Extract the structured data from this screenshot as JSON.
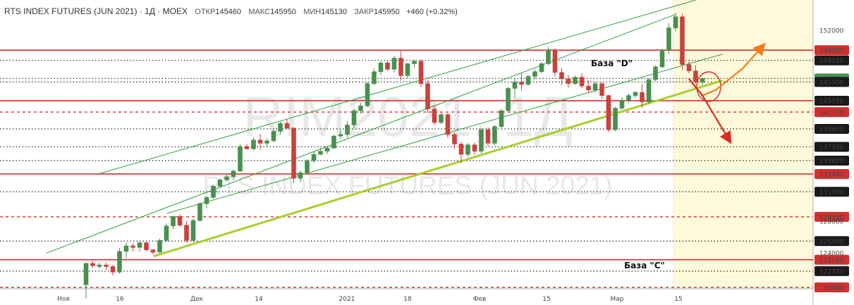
{
  "header": {
    "title": "RTS INDEX FUTURES (JUN 2021) · 1Д · MOEX",
    "open_label": "ОТКР",
    "open": "145460",
    "high_label": "МАКС",
    "high": "145950",
    "low_label": "МИН",
    "low": "145130",
    "close_label": "ЗАКР",
    "close": "145950",
    "change": "+460 (+0.32%)"
  },
  "watermark": {
    "line1": "RIM2021, 1Д",
    "line2": "RTS INDEX FUTURES (JUN 2021)"
  },
  "colors": {
    "up": "#4a8f4f",
    "down": "#c8433c",
    "hline_red": "#d32f2f",
    "channel": "#2e9e3a",
    "support": "#a8cf2c",
    "arrow_up": "#f07d1a",
    "arrow_down": "#d92a1e",
    "highlight": "#fff9db"
  },
  "annotations": {
    "base_d": "База \"D\"",
    "base_c": "База \"С\""
  },
  "chart_data": {
    "type": "candlestick",
    "title": "RTS INDEX FUTURES (JUN 2021) · 1Д · MOEX",
    "ylim": [
      118300,
      155800
    ],
    "x_tick_labels": [
      "Ноя",
      "16",
      "Дек",
      "14",
      "2021",
      "18",
      "Фев",
      "15",
      "Мар",
      "15"
    ],
    "y_axis_labels": [
      {
        "value": 152000,
        "style": "plain"
      },
      {
        "value": 149500,
        "style": "red"
      },
      {
        "value": 148220,
        "style": "dark"
      },
      {
        "value": 145950,
        "style": "green"
      },
      {
        "value": 145500,
        "style": "dark"
      },
      {
        "value": 143150,
        "style": "dark"
      },
      {
        "value": 141720,
        "style": "red"
      },
      {
        "value": 139600,
        "style": "dark"
      },
      {
        "value": 137350,
        "style": "dark"
      },
      {
        "value": 135620,
        "style": "dark"
      },
      {
        "value": 133940,
        "style": "red"
      },
      {
        "value": 131700,
        "style": "dark"
      },
      {
        "value": 128550,
        "style": "red"
      },
      {
        "value": 128000,
        "style": "faint"
      },
      {
        "value": 125500,
        "style": "dark"
      },
      {
        "value": 124000,
        "style": "faint"
      },
      {
        "value": 123160,
        "style": "red"
      },
      {
        "value": 121730,
        "style": "dark"
      },
      {
        "value": 119680,
        "style": "red"
      }
    ],
    "horizontal_levels": [
      {
        "value": 149500,
        "style": "solid-red"
      },
      {
        "value": 148220,
        "style": "dotted"
      },
      {
        "value": 145950,
        "style": "dotted"
      },
      {
        "value": 145500,
        "style": "dotted"
      },
      {
        "value": 143150,
        "style": "solid-red"
      },
      {
        "value": 141720,
        "style": "dashed-red"
      },
      {
        "value": 139600,
        "style": "dotted"
      },
      {
        "value": 137350,
        "style": "dotted"
      },
      {
        "value": 135620,
        "style": "dotted"
      },
      {
        "value": 133940,
        "style": "solid-red"
      },
      {
        "value": 131700,
        "style": "dotted"
      },
      {
        "value": 128550,
        "style": "dashed-red"
      },
      {
        "value": 125500,
        "style": "dotted"
      },
      {
        "value": 123160,
        "style": "solid-red"
      },
      {
        "value": 121730,
        "style": "dotted"
      },
      {
        "value": 119680,
        "style": "dashed-red"
      }
    ],
    "trend_lines": [
      {
        "kind": "channel",
        "from": [
          0,
          124000
        ],
        "to": [
          88,
          154000
        ]
      },
      {
        "kind": "channel",
        "from": [
          8,
          134000
        ],
        "to": [
          91,
          155800
        ]
      },
      {
        "kind": "channel",
        "from": [
          18,
          129000
        ],
        "to": [
          95,
          149000
        ]
      },
      {
        "kind": "support",
        "from": [
          16,
          123600
        ],
        "to": [
          95,
          145700
        ]
      }
    ],
    "forecast_arrows": [
      {
        "kind": "up",
        "points": [
          [
            90,
            145900
          ],
          [
            92,
            143800
          ],
          [
            94,
            144500
          ],
          [
            98,
            147200
          ],
          [
            101,
            150000
          ]
        ]
      },
      {
        "kind": "down",
        "points": [
          [
            90,
            145900
          ],
          [
            92,
            143800
          ],
          [
            94,
            141000
          ],
          [
            96,
            138200
          ]
        ]
      }
    ],
    "candles": [
      [
        120000,
        122800,
        118300,
        122700
      ],
      [
        122700,
        123000,
        122100,
        122400
      ],
      [
        122300,
        122800,
        122000,
        122500
      ],
      [
        122500,
        122800,
        121900,
        122300
      ],
      [
        122300,
        122500,
        121200,
        121600
      ],
      [
        121600,
        124600,
        121400,
        124200
      ],
      [
        124200,
        125300,
        123300,
        124900
      ],
      [
        124900,
        125200,
        124200,
        124700
      ],
      [
        124700,
        125400,
        124200,
        125300
      ],
      [
        125300,
        125400,
        124200,
        124400
      ],
      [
        124400,
        124500,
        123800,
        124100
      ],
      [
        124100,
        125800,
        124000,
        125600
      ],
      [
        125600,
        127700,
        125400,
        127400
      ],
      [
        127400,
        128700,
        127000,
        128600
      ],
      [
        128600,
        128900,
        127300,
        127500
      ],
      [
        127500,
        128000,
        125300,
        125600
      ],
      [
        125600,
        128300,
        125400,
        128100
      ],
      [
        128100,
        130400,
        127900,
        130200
      ],
      [
        130200,
        131200,
        129600,
        131000
      ],
      [
        131000,
        132600,
        130800,
        132400
      ],
      [
        132400,
        133400,
        132100,
        133200
      ],
      [
        133200,
        134000,
        133000,
        133600
      ],
      [
        133600,
        134500,
        133200,
        134300
      ],
      [
        134300,
        137700,
        134200,
        137400
      ],
      [
        137400,
        137700,
        137000,
        137100
      ],
      [
        137100,
        138500,
        136900,
        138200
      ],
      [
        138200,
        139000,
        137000,
        137800
      ],
      [
        137800,
        138400,
        137400,
        138100
      ],
      [
        138100,
        139600,
        137900,
        139300
      ],
      [
        139300,
        140500,
        138900,
        140300
      ],
      [
        140300,
        140800,
        139600,
        139700
      ],
      [
        139700,
        139800,
        132800,
        133400
      ],
      [
        133400,
        134400,
        132900,
        134100
      ],
      [
        134100,
        135800,
        134000,
        135600
      ],
      [
        135600,
        136700,
        135300,
        136400
      ],
      [
        136400,
        137200,
        136300,
        136800
      ],
      [
        136800,
        137400,
        136400,
        137200
      ],
      [
        137200,
        138900,
        137100,
        138700
      ],
      [
        138700,
        139400,
        138300,
        138900
      ],
      [
        138900,
        140600,
        138500,
        140100
      ],
      [
        140100,
        142200,
        139700,
        141900
      ],
      [
        141900,
        142900,
        141500,
        142500
      ],
      [
        142500,
        145500,
        142300,
        145300
      ],
      [
        145300,
        147200,
        145100,
        146800
      ],
      [
        146800,
        148100,
        146400,
        147900
      ],
      [
        147900,
        148100,
        146900,
        147100
      ],
      [
        147100,
        148800,
        146700,
        148500
      ],
      [
        148500,
        149400,
        145700,
        146300
      ],
      [
        146300,
        147900,
        146000,
        147800
      ],
      [
        147800,
        148300,
        147300,
        148100
      ],
      [
        148100,
        148400,
        144900,
        145300
      ],
      [
        145300,
        145800,
        141600,
        142100
      ],
      [
        142100,
        142600,
        140100,
        140400
      ],
      [
        140400,
        141600,
        140200,
        141400
      ],
      [
        141400,
        141600,
        138500,
        138900
      ],
      [
        138900,
        139100,
        137100,
        137700
      ],
      [
        137700,
        138000,
        135300,
        136400
      ],
      [
        136400,
        137800,
        136100,
        137600
      ],
      [
        137600,
        137900,
        136300,
        136800
      ],
      [
        136800,
        139800,
        136500,
        139500
      ],
      [
        139500,
        139800,
        137500,
        137800
      ],
      [
        137800,
        140100,
        137500,
        139900
      ],
      [
        139900,
        142100,
        139700,
        141900
      ],
      [
        141900,
        144900,
        141700,
        144700
      ],
      [
        144700,
        145900,
        143400,
        145500
      ],
      [
        145500,
        146600,
        144400,
        145200
      ],
      [
        145200,
        146400,
        145000,
        146200
      ],
      [
        146200,
        147100,
        145800,
        146800
      ],
      [
        146800,
        148000,
        146600,
        147800
      ],
      [
        147800,
        149900,
        147600,
        149500
      ],
      [
        149500,
        149700,
        146200,
        146700
      ],
      [
        146700,
        147300,
        145100,
        145900
      ],
      [
        145900,
        146400,
        144800,
        145300
      ],
      [
        145300,
        146300,
        145100,
        146100
      ],
      [
        146100,
        146600,
        144700,
        145000
      ],
      [
        145000,
        145700,
        144100,
        144500
      ],
      [
        144500,
        145500,
        144200,
        145300
      ],
      [
        145300,
        145500,
        143400,
        143800
      ],
      [
        143800,
        143900,
        139200,
        139500
      ],
      [
        139500,
        142400,
        139300,
        142200
      ],
      [
        142200,
        143600,
        142000,
        143200
      ],
      [
        143200,
        144100,
        142900,
        143800
      ],
      [
        143800,
        144400,
        143500,
        144200
      ],
      [
        144200,
        145200,
        142300,
        143000
      ],
      [
        143000,
        146000,
        142700,
        145800
      ],
      [
        145800,
        147600,
        145600,
        147400
      ],
      [
        147400,
        149700,
        147200,
        149500
      ],
      [
        149500,
        152900,
        149000,
        152300
      ],
      [
        152300,
        154200,
        151900,
        153700
      ],
      [
        153700,
        154100,
        147000,
        147700
      ],
      [
        147700,
        148100,
        146600,
        146900
      ],
      [
        146900,
        147600,
        145300,
        145500
      ],
      [
        145460,
        145950,
        145130,
        145950
      ]
    ]
  }
}
